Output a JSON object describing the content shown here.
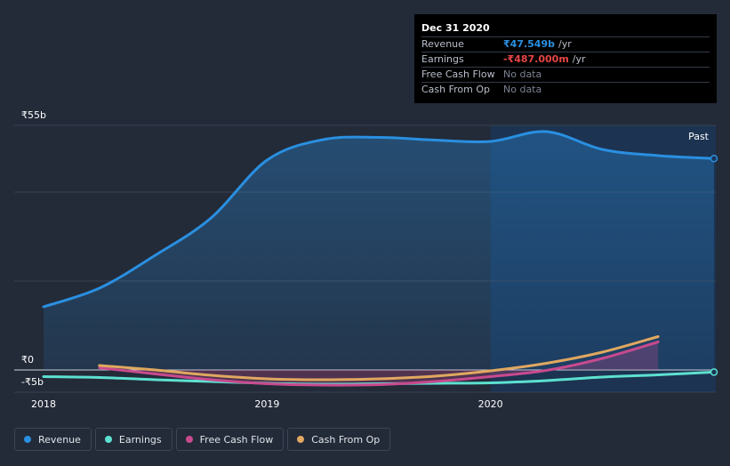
{
  "chart_data": {
    "type": "line",
    "title": "",
    "currency_prefix": "₹",
    "y_ticks": [
      {
        "value": 55,
        "label": "₹55b"
      },
      {
        "value": 0,
        "label": "₹0"
      },
      {
        "value": -5,
        "label": "-₹5b"
      }
    ],
    "x_ticks": [
      {
        "value": 2018.0,
        "label": "2018"
      },
      {
        "value": 2019.0,
        "label": "2019"
      },
      {
        "value": 2020.0,
        "label": "2020"
      }
    ],
    "x_range": [
      2018.0,
      2021.0
    ],
    "ylim": [
      -5,
      55
    ],
    "past_label": "Past",
    "past_start": 2020.0,
    "series": [
      {
        "name": "Revenue",
        "color": "#2a8fe0",
        "fill": true,
        "points": [
          [
            2018.0,
            14.2
          ],
          [
            2018.25,
            18.4
          ],
          [
            2018.5,
            25.8
          ],
          [
            2018.75,
            34.2
          ],
          [
            2019.0,
            47.2
          ],
          [
            2019.25,
            51.8
          ],
          [
            2019.5,
            52.3
          ],
          [
            2019.75,
            51.7
          ],
          [
            2020.0,
            51.4
          ],
          [
            2020.25,
            53.6
          ],
          [
            2020.5,
            49.6
          ],
          [
            2020.75,
            48.2
          ],
          [
            2021.0,
            47.549
          ]
        ]
      },
      {
        "name": "Earnings",
        "color": "#5de0d0",
        "fill": false,
        "points": [
          [
            2018.0,
            -1.5
          ],
          [
            2018.25,
            -1.7
          ],
          [
            2018.5,
            -2.2
          ],
          [
            2018.75,
            -2.6
          ],
          [
            2019.0,
            -3.0
          ],
          [
            2019.25,
            -3.2
          ],
          [
            2019.5,
            -3.1
          ],
          [
            2019.75,
            -3.0
          ],
          [
            2020.0,
            -2.9
          ],
          [
            2020.25,
            -2.4
          ],
          [
            2020.5,
            -1.6
          ],
          [
            2020.75,
            -1.1
          ],
          [
            2021.0,
            -0.487
          ]
        ]
      },
      {
        "name": "Free Cash Flow",
        "color": "#c84a8e",
        "fill": true,
        "points": [
          [
            2018.25,
            0.5
          ],
          [
            2018.5,
            -0.9
          ],
          [
            2018.75,
            -2.2
          ],
          [
            2019.0,
            -3.1
          ],
          [
            2019.25,
            -3.4
          ],
          [
            2019.5,
            -3.3
          ],
          [
            2019.75,
            -2.6
          ],
          [
            2020.0,
            -1.5
          ],
          [
            2020.25,
            -0.1
          ],
          [
            2020.5,
            2.6
          ],
          [
            2020.75,
            6.3
          ]
        ]
      },
      {
        "name": "Cash From Op",
        "color": "#e0a860",
        "fill": false,
        "points": [
          [
            2018.25,
            1.0
          ],
          [
            2018.5,
            0.0
          ],
          [
            2018.75,
            -1.2
          ],
          [
            2019.0,
            -2.0
          ],
          [
            2019.25,
            -2.2
          ],
          [
            2019.5,
            -2.0
          ],
          [
            2019.75,
            -1.4
          ],
          [
            2020.0,
            -0.2
          ],
          [
            2020.25,
            1.5
          ],
          [
            2020.5,
            4.0
          ],
          [
            2020.75,
            7.5
          ]
        ]
      }
    ]
  },
  "tooltip": {
    "date": "Dec 31 2020",
    "rows": [
      {
        "label": "Revenue",
        "value": "₹47.549b",
        "unit": "/yr",
        "color": "#2a8fe0"
      },
      {
        "label": "Earnings",
        "value": "-₹487.000m",
        "unit": "/yr",
        "color": "#e84545"
      },
      {
        "label": "Free Cash Flow",
        "value": "No data",
        "unit": "",
        "color": "#7b8291"
      },
      {
        "label": "Cash From Op",
        "value": "No data",
        "unit": "",
        "color": "#7b8291"
      }
    ]
  },
  "legend": [
    {
      "label": "Revenue",
      "color": "#2a8fe0"
    },
    {
      "label": "Earnings",
      "color": "#5de0d0"
    },
    {
      "label": "Free Cash Flow",
      "color": "#c84a8e"
    },
    {
      "label": "Cash From Op",
      "color": "#e0a860"
    }
  ]
}
